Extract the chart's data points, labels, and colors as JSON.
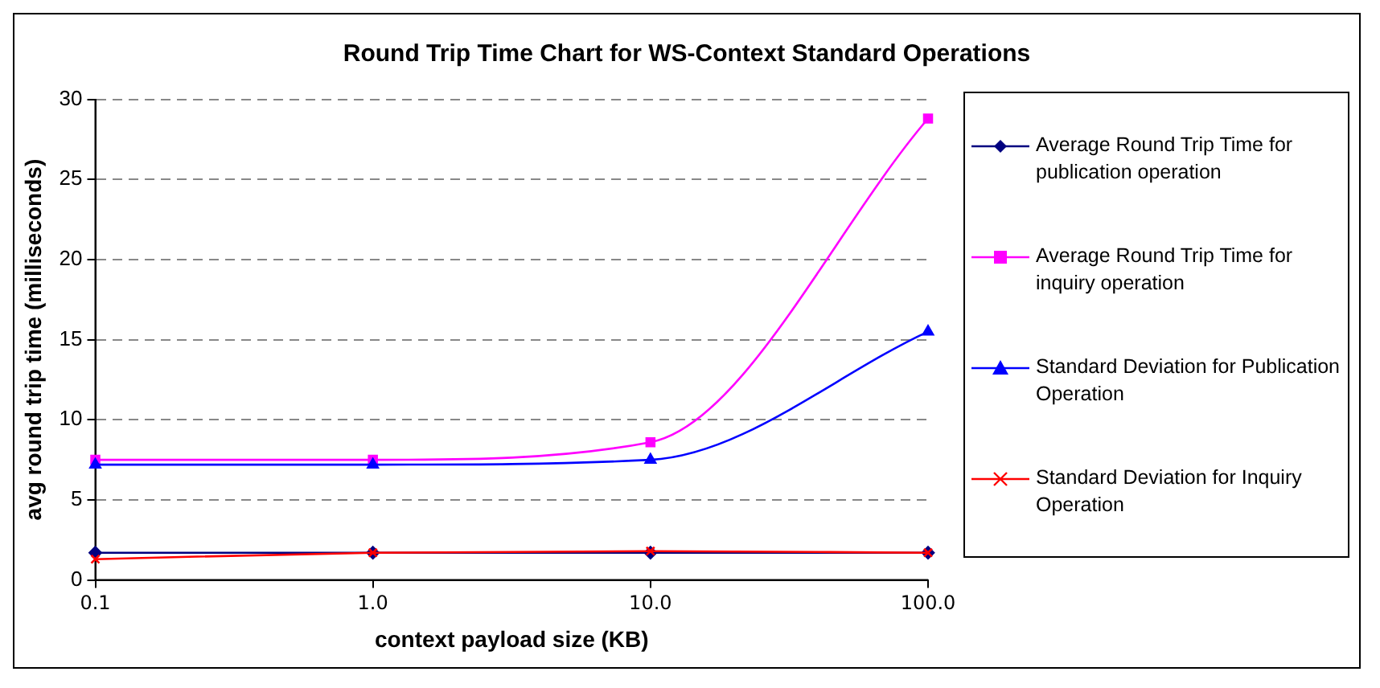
{
  "chart_data": {
    "type": "line",
    "title": "Round Trip Time Chart for WS-Context Standard Operations",
    "xlabel": "context payload size (KB)",
    "ylabel": "avg round trip time (milliseconds)",
    "x": [
      0.1,
      1,
      10,
      100
    ],
    "log": "x",
    "xlim": [
      0.1,
      100
    ],
    "xticks": [
      {
        "value": 0.1,
        "label": "0.1"
      },
      {
        "value": 1,
        "label": "1.0"
      },
      {
        "value": 10,
        "label": "10.0"
      },
      {
        "value": 100,
        "label": "100.0"
      }
    ],
    "ylim": [
      0,
      30
    ],
    "yticks": [
      0,
      5,
      10,
      15,
      20,
      25,
      30
    ],
    "grid": "y",
    "legend": "right",
    "series": [
      {
        "name": "Average Round Trip Time for publication operation",
        "color": "#000080",
        "marker": "diamond",
        "values": [
          1.7,
          1.7,
          1.7,
          1.7
        ]
      },
      {
        "name": "Average Round Trip Time for inquiry operation",
        "color": "#ff00ff",
        "marker": "square",
        "values": [
          7.5,
          7.5,
          8.6,
          28.8
        ]
      },
      {
        "name": "Standard Deviation for Publication Operation",
        "color": "#0000ff",
        "marker": "triangle",
        "values": [
          7.2,
          7.2,
          7.5,
          15.5
        ]
      },
      {
        "name": "Standard Deviation for Inquiry Operation",
        "color": "#ff0000",
        "marker": "cross",
        "values": [
          1.3,
          1.7,
          1.8,
          1.7
        ]
      }
    ]
  }
}
